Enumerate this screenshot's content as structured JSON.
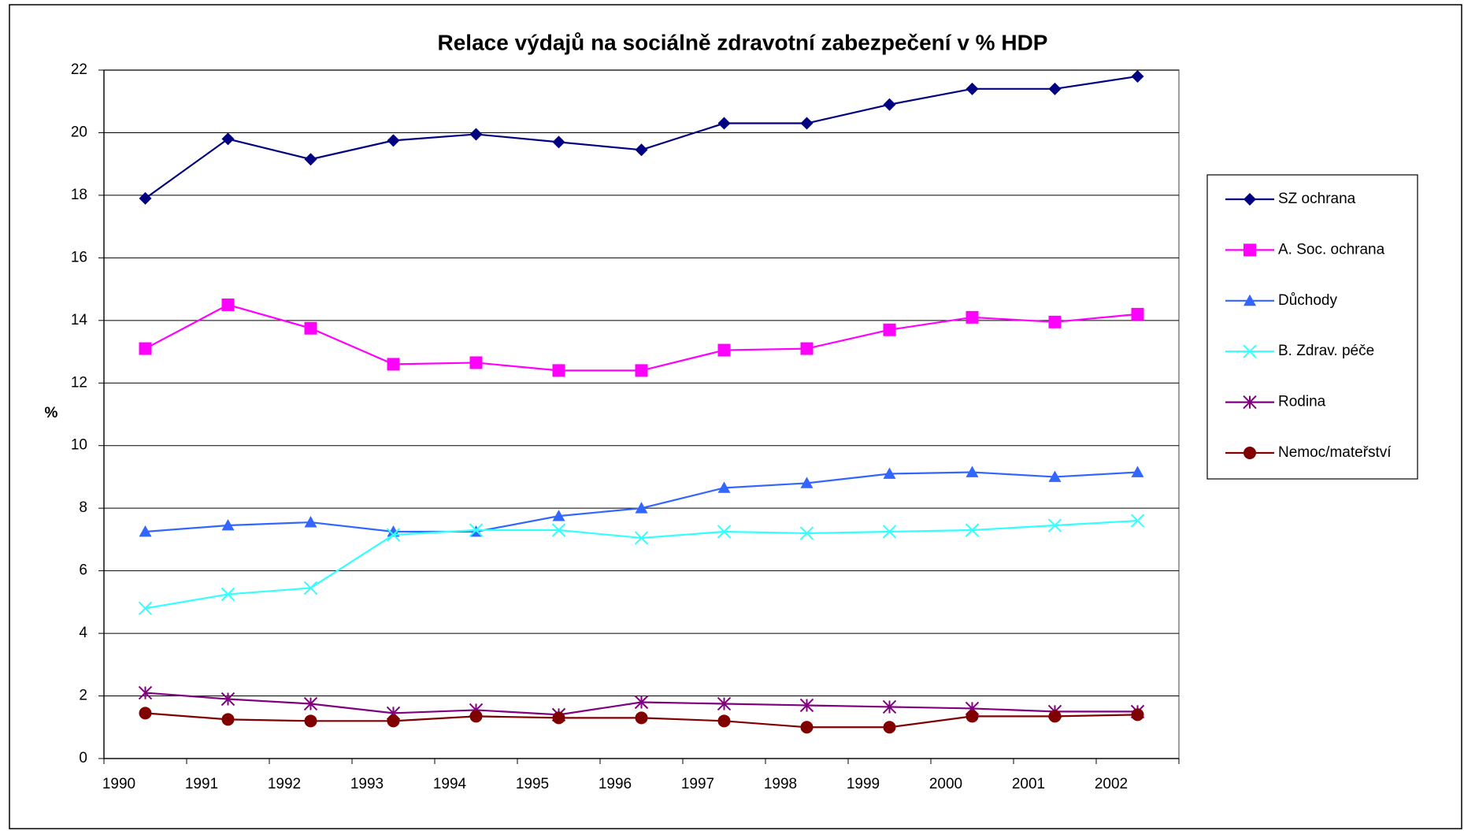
{
  "chart_data": {
    "type": "line",
    "title": "Relace výdajů na sociálně zdravotní zabezpečení v % HDP",
    "y_label": "%",
    "categories": [
      "1990",
      "1991",
      "1992",
      "1993",
      "1994",
      "1995",
      "1996",
      "1997",
      "1998",
      "1999",
      "2000",
      "2001",
      "2002"
    ],
    "series": [
      {
        "name": "SZ ochrana",
        "color": "#000080",
        "marker": "diamond",
        "values": [
          17.9,
          19.8,
          19.15,
          19.75,
          19.95,
          19.7,
          19.45,
          20.3,
          20.3,
          20.9,
          21.4,
          21.4,
          21.8
        ]
      },
      {
        "name": "A. Soc. ochrana",
        "color": "#ff00ff",
        "marker": "square",
        "values": [
          13.1,
          14.5,
          13.75,
          12.6,
          12.65,
          12.4,
          12.4,
          13.05,
          13.1,
          13.7,
          14.1,
          13.95,
          14.2
        ]
      },
      {
        "name": "Důchody",
        "color": "#3366ff",
        "marker": "triangle",
        "values": [
          7.25,
          7.45,
          7.55,
          7.25,
          7.25,
          7.75,
          8.0,
          8.65,
          8.8,
          9.1,
          9.15,
          9.0,
          9.15
        ]
      },
      {
        "name": "B. Zdrav. péče",
        "color": "#33ffff",
        "marker": "x",
        "values": [
          4.8,
          5.25,
          5.45,
          7.15,
          7.3,
          7.3,
          7.05,
          7.25,
          7.2,
          7.25,
          7.3,
          7.45,
          7.6
        ]
      },
      {
        "name": "Rodina",
        "color": "#800080",
        "marker": "star",
        "values": [
          2.1,
          1.9,
          1.75,
          1.45,
          1.55,
          1.4,
          1.8,
          1.75,
          1.7,
          1.65,
          1.6,
          1.5,
          1.5
        ]
      },
      {
        "name": "Nemoc/mateřství",
        "color": "#800000",
        "marker": "circle",
        "values": [
          1.45,
          1.25,
          1.2,
          1.2,
          1.35,
          1.3,
          1.3,
          1.2,
          1.0,
          1.0,
          1.35,
          1.35,
          1.4
        ]
      }
    ],
    "ylim": [
      0,
      22
    ],
    "yticks": [
      0,
      2,
      4,
      6,
      8,
      10,
      12,
      14,
      16,
      18,
      20,
      22
    ],
    "grid": true,
    "legend": "right"
  }
}
